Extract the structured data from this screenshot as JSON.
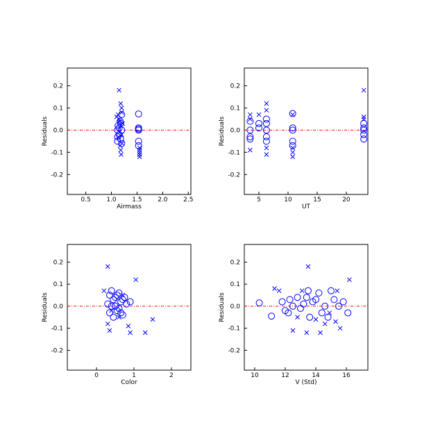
{
  "chart_data": [
    {
      "type": "scatter",
      "x_label": "Airmass",
      "y_label": "Residuals",
      "xlim": [
        0.14,
        2.55
      ],
      "ylim": [
        -0.29,
        0.28
      ],
      "xticks": [
        0.5,
        {
          "value": 1,
          "label": "1.0"
        },
        1.5,
        {
          "value": 2,
          "label": "2.0"
        },
        2.5
      ],
      "yticks": [
        -0.2,
        -0.1,
        {
          "value": 0,
          "label": "0.0"
        },
        0.1,
        0.2
      ],
      "reference_line": 0,
      "reference_color": "#ff0000",
      "series": [
        {
          "marker": "circle",
          "color": "#0000ff",
          "x": [
            1.12,
            1.12,
            1.12,
            1.13,
            1.15,
            1.15,
            1.17,
            1.18,
            1.18,
            1.2,
            1.2,
            1.2,
            1.53,
            1.53,
            1.53,
            1.53,
            1.53,
            1.53
          ],
          "values": [
            0.0,
            -0.03,
            -0.05,
            0.02,
            0.01,
            -0.02,
            0.04,
            0.03,
            -0.04,
            0.07,
            0.0,
            -0.06,
            0.073,
            0.01,
            0.0,
            -0.05,
            -0.07,
            0.005
          ]
        },
        {
          "marker": "cross",
          "color": "#0000ff",
          "x": [
            1.15,
            1.18,
            1.2,
            1.1,
            1.13,
            1.15,
            1.17,
            1.18,
            1.19,
            1.2,
            1.21,
            1.22,
            1.14,
            1.16,
            1.18,
            1.2,
            1.55,
            1.55,
            1.55,
            1.55,
            1.55
          ],
          "values": [
            0.18,
            0.12,
            0.1,
            0.06,
            0.07,
            0.05,
            -0.07,
            -0.09,
            -0.11,
            0.08,
            -0.06,
            0.03,
            -0.03,
            0.04,
            0.02,
            -0.02,
            -0.08,
            -0.1,
            -0.12,
            -0.11,
            -0.09
          ]
        }
      ]
    },
    {
      "type": "scatter",
      "x_label": "UT",
      "y_label": "Residuals",
      "xlim": [
        2.5,
        23.7
      ],
      "ylim": [
        -0.29,
        0.28
      ],
      "xticks": [
        5,
        10,
        15,
        20
      ],
      "yticks": [
        -0.2,
        -0.1,
        {
          "value": 0,
          "label": "0.0"
        },
        0.1,
        0.2
      ],
      "reference_line": 0,
      "reference_color": "#ff0000",
      "series": [
        {
          "marker": "circle",
          "color": "#0000ff",
          "x": [
            3.5,
            3.5,
            3.5,
            3.5,
            5,
            5,
            6.3,
            6.3,
            6.3,
            6.3,
            6.3,
            10.8,
            10.8,
            10.8,
            10.8,
            10.8,
            23,
            23,
            23,
            23,
            23
          ],
          "values": [
            0.04,
            0.0,
            -0.03,
            -0.04,
            0.03,
            0.01,
            0.05,
            0.03,
            0.0,
            -0.03,
            -0.05,
            0.075,
            0.01,
            0.0,
            -0.05,
            -0.07,
            0.03,
            0.01,
            0.0,
            -0.02,
            -0.04
          ]
        },
        {
          "marker": "cross",
          "color": "#0000ff",
          "x": [
            3.5,
            3.5,
            3.5,
            5,
            6.3,
            6.3,
            6.3,
            6.3,
            10.8,
            10.8,
            10.8,
            10.8,
            23,
            23,
            23
          ],
          "values": [
            0.07,
            0.05,
            -0.09,
            0.07,
            0.12,
            0.09,
            -0.08,
            -0.11,
            -0.08,
            -0.1,
            -0.12,
            0.07,
            0.18,
            0.06,
            0.05
          ]
        }
      ]
    },
    {
      "type": "scatter",
      "x_label": "Color",
      "y_label": "Residuals",
      "xlim": [
        -0.78,
        2.52
      ],
      "ylim": [
        -0.29,
        0.28
      ],
      "xticks": [
        0,
        1,
        2
      ],
      "yticks": [
        -0.2,
        -0.1,
        {
          "value": 0,
          "label": "0.0"
        },
        0.1,
        0.2
      ],
      "reference_line": 0,
      "reference_color": "#ff0000",
      "series": [
        {
          "marker": "circle",
          "color": "#0000ff",
          "x": [
            0.3,
            0.35,
            0.4,
            0.45,
            0.5,
            0.55,
            0.6,
            0.65,
            0.7,
            0.75,
            0.8,
            0.9,
            0.35,
            0.45,
            0.5,
            0.6,
            0.7,
            0.4,
            0.65,
            0.55
          ],
          "values": [
            0.01,
            0.05,
            0.07,
            0.03,
            0.0,
            -0.02,
            0.06,
            0.02,
            -0.04,
            0.04,
            0.01,
            0.02,
            -0.03,
            -0.05,
            0.04,
            -0.01,
            0.03,
            0.0,
            -0.03,
            0.05
          ]
        },
        {
          "marker": "cross",
          "color": "#0000ff",
          "x": [
            0.3,
            0.2,
            1.05,
            1.3,
            1.5,
            0.85,
            0.9,
            0.35,
            0.3,
            0.6,
            0.7,
            0.4
          ],
          "values": [
            0.18,
            0.07,
            0.12,
            -0.12,
            -0.06,
            -0.09,
            -0.12,
            -0.11,
            -0.08,
            -0.05,
            0.05,
            -0.02
          ]
        }
      ]
    },
    {
      "type": "scatter",
      "x_label": "V (Std)",
      "y_label": "Residuals",
      "xlim": [
        9.32,
        17.41
      ],
      "ylim": [
        -0.29,
        0.28
      ],
      "xticks": [
        10,
        12,
        14,
        16
      ],
      "yticks": [
        -0.2,
        -0.1,
        {
          "value": 0,
          "label": "0.0"
        },
        0.1,
        0.2
      ],
      "reference_line": 0,
      "reference_color": "#ff0000",
      "series": [
        {
          "marker": "circle",
          "color": "#0000ff",
          "x": [
            10.3,
            11.1,
            11.8,
            12,
            12.3,
            12.5,
            12.8,
            13,
            13.2,
            13.5,
            13.6,
            13.8,
            14,
            14.2,
            14.4,
            14.6,
            14.8,
            15,
            15.2,
            15.5,
            15.8,
            16.1,
            12.2,
            13.4
          ],
          "values": [
            0.015,
            -0.045,
            0.02,
            -0.02,
            0.03,
            0.0,
            0.04,
            -0.01,
            0.01,
            0.07,
            -0.05,
            0.02,
            0.03,
            0.06,
            -0.03,
            0.0,
            -0.05,
            0.07,
            0.03,
            0.0,
            0.02,
            -0.03,
            -0.03,
            0.04
          ]
        },
        {
          "marker": "cross",
          "color": "#0000ff",
          "x": [
            11.3,
            11.6,
            12.5,
            13.1,
            13.5,
            13.4,
            14,
            14.3,
            14.6,
            15.3,
            15.6,
            16.2,
            15.4,
            12.8,
            14.9
          ],
          "values": [
            0.08,
            0.07,
            -0.11,
            0.07,
            0.18,
            -0.12,
            -0.06,
            -0.12,
            -0.08,
            -0.07,
            -0.1,
            0.12,
            0.07,
            -0.05,
            -0.03
          ]
        }
      ]
    }
  ]
}
